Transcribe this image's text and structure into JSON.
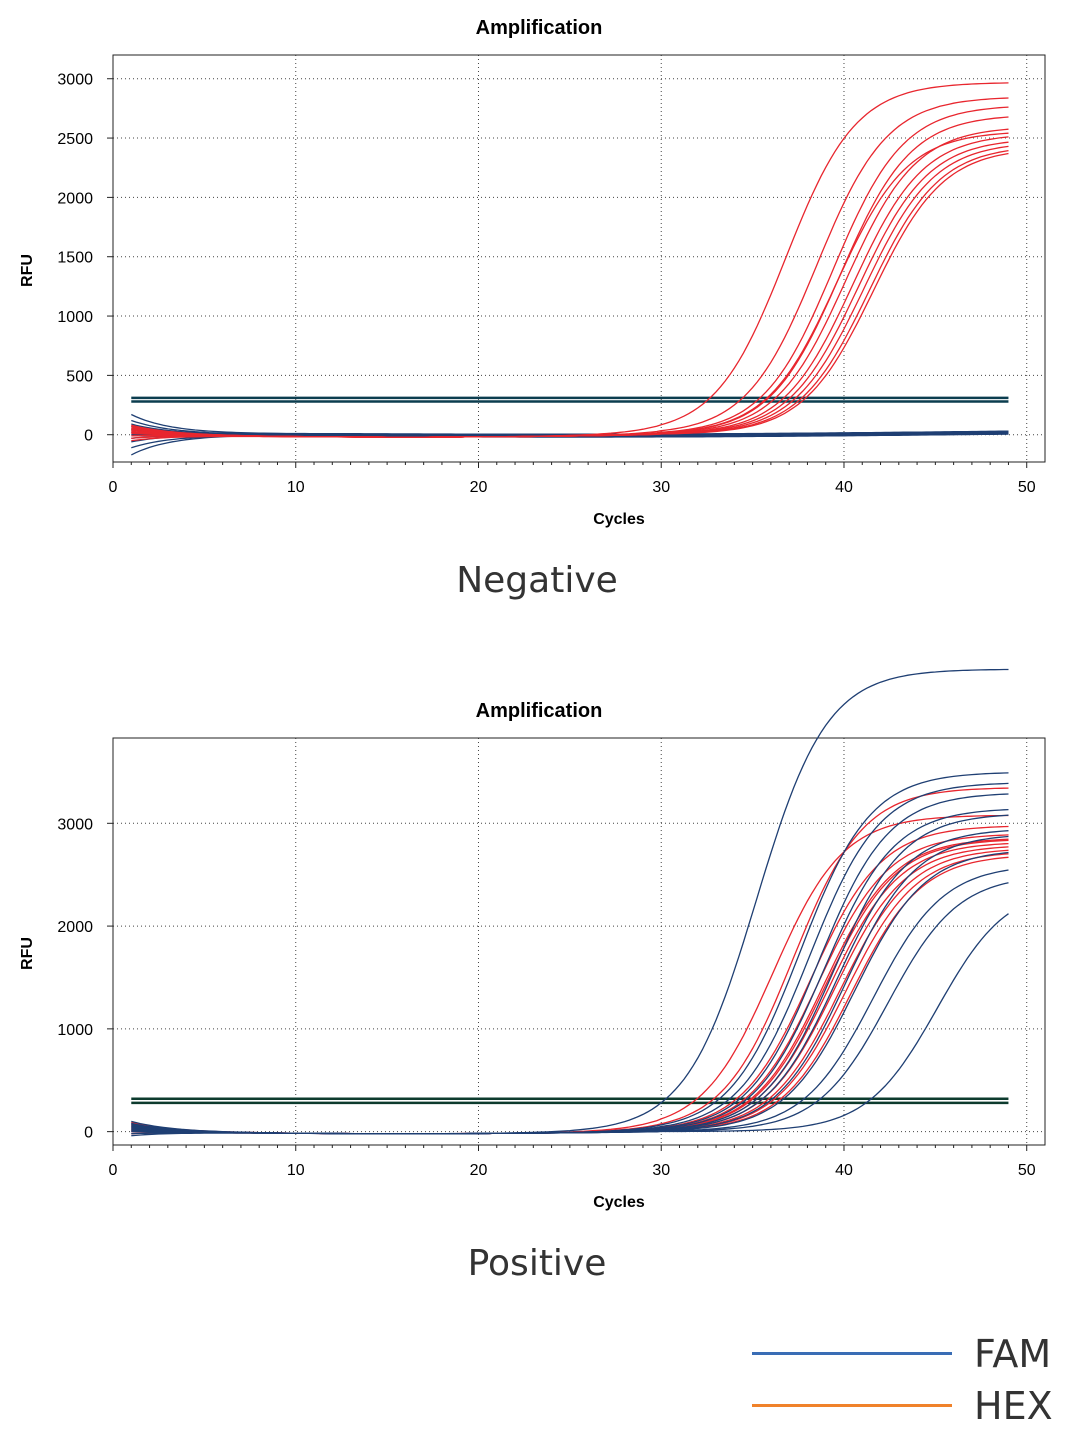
{
  "chart_data": [
    {
      "type": "line",
      "title": "Amplification",
      "xlabel": "Cycles",
      "ylabel": "RFU",
      "xlim": [
        0,
        51
      ],
      "ylim": [
        -230,
        3200
      ],
      "xticks": [
        0,
        10,
        20,
        30,
        40,
        50
      ],
      "yticks": [
        0,
        500,
        1000,
        1500,
        2000,
        2500,
        3000
      ],
      "grid": true,
      "thresholds": [
        310,
        280
      ],
      "threshold_color": "#0b3d4f",
      "fam_curves": [
        {
          "start": 170,
          "plateau": 25
        },
        {
          "start": 120,
          "plateau": 15
        },
        {
          "start": 90,
          "plateau": 10
        },
        {
          "start": 70,
          "plateau": 20
        },
        {
          "start": 50,
          "plateau": 5
        },
        {
          "start": 40,
          "plateau": 30
        },
        {
          "start": 20,
          "plateau": 12
        },
        {
          "start": 0,
          "plateau": 8
        },
        {
          "start": -30,
          "plateau": 18
        },
        {
          "start": -60,
          "plateau": 22
        },
        {
          "start": -110,
          "plateau": 10
        },
        {
          "start": -170,
          "plateau": 15
        }
      ],
      "hex_curves": [
        {
          "start": 60,
          "ct": 34.2,
          "plateau": 2970
        },
        {
          "start": 40,
          "ct": 35.9,
          "plateau": 2850
        },
        {
          "start": 20,
          "ct": 36.8,
          "plateau": 2780
        },
        {
          "start": 80,
          "ct": 37.2,
          "plateau": 2700
        },
        {
          "start": -10,
          "ct": 37.5,
          "plateau": 2600
        },
        {
          "start": 10,
          "ct": 37.9,
          "plateau": 2540
        },
        {
          "start": 30,
          "ct": 38.2,
          "plateau": 2500
        },
        {
          "start": 50,
          "ct": 38.5,
          "plateau": 2470
        },
        {
          "start": 70,
          "ct": 38.8,
          "plateau": 2440
        },
        {
          "start": -30,
          "ct": 39.0,
          "plateau": 2420
        },
        {
          "start": -50,
          "ct": 37.0,
          "plateau": 2560
        }
      ]
    },
    {
      "type": "line",
      "title": "Amplification",
      "xlabel": "Cycles",
      "ylabel": "RFU",
      "xlim": [
        0,
        51
      ],
      "ylim": [
        -130,
        3830
      ],
      "xticks": [
        0,
        10,
        20,
        30,
        40,
        50
      ],
      "yticks": [
        0,
        1000,
        2000,
        3000
      ],
      "grid": true,
      "thresholds": [
        320,
        280
      ],
      "threshold_color": "#0d3b2e",
      "fam_curves": [
        {
          "start": 100,
          "ct": 32.6,
          "plateau": 4500
        },
        {
          "start": 60,
          "ct": 35.0,
          "plateau": 3500
        },
        {
          "start": 40,
          "ct": 35.5,
          "plateau": 3400
        },
        {
          "start": 20,
          "ct": 36.0,
          "plateau": 3300
        },
        {
          "start": 80,
          "ct": 36.3,
          "plateau": 3150
        },
        {
          "start": -20,
          "ct": 36.8,
          "plateau": 3100
        },
        {
          "start": 10,
          "ct": 37.0,
          "plateau": 2950
        },
        {
          "start": 50,
          "ct": 37.5,
          "plateau": 2900
        },
        {
          "start": 0,
          "ct": 38.0,
          "plateau": 2750
        },
        {
          "start": 30,
          "ct": 39.0,
          "plateau": 2600
        },
        {
          "start": -40,
          "ct": 39.8,
          "plateau": 2500
        },
        {
          "start": 70,
          "ct": 42.5,
          "plateau": 2400
        }
      ],
      "hex_curves": [
        {
          "start": 90,
          "ct": 33.5,
          "plateau": 3080
        },
        {
          "start": 60,
          "ct": 34.6,
          "plateau": 3350
        },
        {
          "start": 40,
          "ct": 35.6,
          "plateau": 2980
        },
        {
          "start": 20,
          "ct": 36.0,
          "plateau": 2900
        },
        {
          "start": 70,
          "ct": 36.3,
          "plateau": 2860
        },
        {
          "start": 0,
          "ct": 36.6,
          "plateau": 2820
        },
        {
          "start": 30,
          "ct": 36.9,
          "plateau": 2790
        },
        {
          "start": 50,
          "ct": 37.2,
          "plateau": 2760
        },
        {
          "start": 10,
          "ct": 37.5,
          "plateau": 2730
        },
        {
          "start": -20,
          "ct": 37.8,
          "plateau": 2700
        },
        {
          "start": 80,
          "ct": 36.4,
          "plateau": 2850
        }
      ]
    }
  ],
  "colors": {
    "fam_curve": "#1f3f73",
    "hex_curve": "#e8262e",
    "grid": "#444444",
    "legend_fam": "#3a6db5",
    "legend_hex": "#f0822a"
  },
  "captions": {
    "negative": "Negative",
    "positive": "Positive"
  },
  "legend": [
    {
      "label": "FAM",
      "color": "#3a6db5"
    },
    {
      "label": "HEX",
      "color": "#f0822a"
    }
  ]
}
